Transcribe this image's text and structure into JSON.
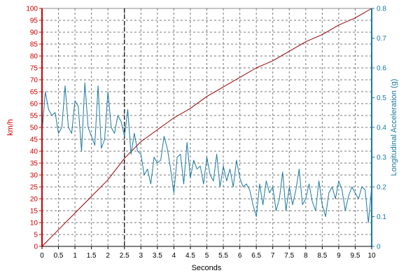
{
  "chart_data": {
    "type": "line",
    "xlabel": "Seconds",
    "xlim": [
      0,
      10
    ],
    "x_ticks": [
      "0",
      "0.5",
      "1",
      "1.5",
      "2",
      "2.5",
      "3",
      "3.5",
      "4",
      "4.5",
      "5",
      "5.5",
      "6",
      "6.5",
      "7",
      "7.5",
      "8",
      "8.5",
      "9",
      "9.5",
      "10"
    ],
    "y_left": {
      "label": "km/h",
      "range": [
        0,
        100
      ],
      "ticks": [
        "0",
        "5",
        "10",
        "15",
        "20",
        "25",
        "30",
        "35",
        "40",
        "45",
        "50",
        "55",
        "60",
        "65",
        "70",
        "75",
        "80",
        "85",
        "90",
        "95",
        "100"
      ],
      "color": "#cc0000"
    },
    "y_right": {
      "label": "Longitudinal Acceleration (g)",
      "range": [
        0,
        0.8
      ],
      "ticks": [
        "0",
        "0.1",
        "0.2",
        "0.3",
        "0.4",
        "0.5",
        "0.6",
        "0.7",
        "0.8"
      ],
      "color": "#1a7aa0"
    },
    "grid": true,
    "marker_line": {
      "x": 2.5,
      "style": "dashed",
      "color": "#000000"
    },
    "series": [
      {
        "axis": "left",
        "color": "#990000",
        "x": [
          0,
          0.5,
          1,
          1.5,
          2,
          2.5,
          3,
          3.5,
          4,
          4.5,
          5,
          5.5,
          6,
          6.5,
          7,
          7.5,
          8,
          8.5,
          9,
          9.5,
          10
        ],
        "values": [
          0,
          7,
          14,
          21,
          28,
          37,
          44,
          49,
          54,
          58,
          63,
          67,
          71,
          75,
          78,
          82,
          86,
          89,
          93,
          96,
          100
        ]
      },
      {
        "axis": "right",
        "color": "#1a7aa0",
        "x": [
          0,
          0.1,
          0.2,
          0.3,
          0.4,
          0.5,
          0.6,
          0.7,
          0.8,
          0.9,
          1.0,
          1.1,
          1.2,
          1.3,
          1.4,
          1.5,
          1.6,
          1.7,
          1.8,
          1.9,
          2.0,
          2.1,
          2.2,
          2.3,
          2.4,
          2.5,
          2.6,
          2.7,
          2.8,
          2.9,
          3.0,
          3.1,
          3.2,
          3.3,
          3.4,
          3.5,
          3.6,
          3.7,
          3.8,
          3.9,
          4.0,
          4.1,
          4.2,
          4.3,
          4.4,
          4.5,
          4.6,
          4.7,
          4.8,
          4.9,
          5.0,
          5.1,
          5.2,
          5.3,
          5.4,
          5.5,
          5.6,
          5.7,
          5.8,
          5.9,
          6.0,
          6.1,
          6.2,
          6.3,
          6.4,
          6.5,
          6.6,
          6.7,
          6.8,
          6.9,
          7.0,
          7.1,
          7.2,
          7.3,
          7.4,
          7.5,
          7.6,
          7.7,
          7.8,
          7.9,
          8.0,
          8.1,
          8.2,
          8.3,
          8.4,
          8.5,
          8.6,
          8.7,
          8.8,
          8.9,
          9.0,
          9.1,
          9.2,
          9.3,
          9.4,
          9.5,
          9.6,
          9.7,
          9.8,
          9.9,
          10.0
        ],
        "values": [
          0.38,
          0.52,
          0.46,
          0.44,
          0.45,
          0.38,
          0.4,
          0.54,
          0.4,
          0.38,
          0.49,
          0.47,
          0.32,
          0.55,
          0.4,
          0.37,
          0.34,
          0.54,
          0.33,
          0.36,
          0.52,
          0.4,
          0.38,
          0.44,
          0.42,
          0.37,
          0.46,
          0.31,
          0.38,
          0.32,
          0.31,
          0.24,
          0.26,
          0.21,
          0.3,
          0.28,
          0.29,
          0.37,
          0.33,
          0.26,
          0.18,
          0.3,
          0.31,
          0.21,
          0.35,
          0.23,
          0.29,
          0.26,
          0.27,
          0.21,
          0.3,
          0.24,
          0.22,
          0.31,
          0.2,
          0.27,
          0.22,
          0.26,
          0.2,
          0.29,
          0.23,
          0.2,
          0.21,
          0.19,
          0.14,
          0.1,
          0.21,
          0.14,
          0.22,
          0.18,
          0.2,
          0.12,
          0.16,
          0.25,
          0.12,
          0.2,
          0.14,
          0.19,
          0.26,
          0.14,
          0.16,
          0.21,
          0.15,
          0.12,
          0.22,
          0.14,
          0.1,
          0.18,
          0.2,
          0.16,
          0.22,
          0.19,
          0.12,
          0.17,
          0.2,
          0.18,
          0.16,
          0.2,
          0.19,
          0.08,
          0.2
        ]
      }
    ]
  }
}
